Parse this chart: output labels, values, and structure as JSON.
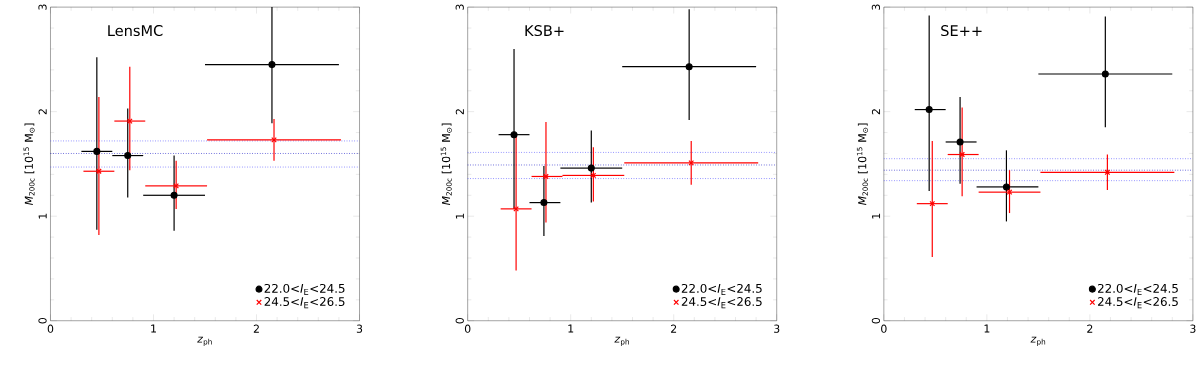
{
  "chart_data": [
    {
      "type": "scatter",
      "title": "LensMC",
      "xlabel": "*z*$_{ph}$",
      "ylabel": "*M*$_{200c}$ [10$^{15}$ M$_{⊙}$]",
      "xlim": [
        0,
        3
      ],
      "ylim": [
        0,
        3
      ],
      "xticks": [
        0,
        1,
        2,
        3
      ],
      "yticks": [
        0,
        1,
        2,
        3
      ],
      "legend": "bottom right",
      "ref_lines": [
        {
          "axis": "y",
          "value": 1.72,
          "color": "#4040ff",
          "line_style": "dotted"
        },
        {
          "axis": "y",
          "value": 1.6,
          "color": "#0000c0",
          "line_style": "dotted"
        },
        {
          "axis": "y",
          "value": 1.47,
          "color": "#4040ff",
          "line_style": "dotted"
        }
      ],
      "series": [
        {
          "name": "22.0<*I*$_{E}$<24.5",
          "color": "#000000",
          "marker": "circle",
          "x": [
            0.45,
            0.75,
            1.2,
            2.15
          ],
          "values": [
            1.62,
            1.58,
            1.2,
            2.45
          ],
          "errors": [
            [
              0.87,
              2.52
            ],
            [
              1.18,
              2.03
            ],
            [
              0.86,
              1.58
            ],
            [
              1.89,
              3.0
            ]
          ],
          "xerrors": [
            [
              0.3,
              0.6
            ],
            [
              0.6,
              0.9
            ],
            [
              0.9,
              1.5
            ],
            [
              1.5,
              2.8
            ]
          ]
        },
        {
          "name": "24.5<*I*$_{E}$<26.5",
          "color": "#ff0000",
          "marker": "cross",
          "x": [
            0.47,
            0.77,
            1.22,
            2.17
          ],
          "values": [
            1.43,
            1.91,
            1.29,
            1.73
          ],
          "errors": [
            [
              0.82,
              2.14
            ],
            [
              1.44,
              2.43
            ],
            [
              1.07,
              1.53
            ],
            [
              1.53,
              1.93
            ]
          ],
          "xerrors": [
            [
              0.32,
              0.62
            ],
            [
              0.62,
              0.92
            ],
            [
              0.92,
              1.52
            ],
            [
              1.52,
              2.82
            ]
          ]
        }
      ]
    },
    {
      "type": "scatter",
      "title": "KSB+",
      "xlabel": "*z*$_{ph}$",
      "ylabel": "*M*$_{200c}$ [10$^{15}$ M$_{⊙}$]",
      "xlim": [
        0,
        3
      ],
      "ylim": [
        0,
        3
      ],
      "xticks": [
        0,
        1,
        2,
        3
      ],
      "yticks": [
        0,
        1,
        2,
        3
      ],
      "legend": "bottom right",
      "ref_lines": [
        {
          "axis": "y",
          "value": 1.61,
          "color": "#4040ff",
          "line_style": "dotted"
        },
        {
          "axis": "y",
          "value": 1.49,
          "color": "#0000c0",
          "line_style": "dotted"
        },
        {
          "axis": "y",
          "value": 1.36,
          "color": "#4040ff",
          "line_style": "dotted"
        }
      ],
      "series": [
        {
          "name": "22.0<*I*$_{E}$<24.5",
          "color": "#000000",
          "marker": "circle",
          "x": [
            0.45,
            0.74,
            1.2,
            2.15
          ],
          "values": [
            1.78,
            1.13,
            1.46,
            2.43
          ],
          "errors": [
            [
              1.07,
              2.6
            ],
            [
              0.81,
              1.48
            ],
            [
              1.13,
              1.82
            ],
            [
              1.92,
              2.98
            ]
          ],
          "xerrors": [
            [
              0.3,
              0.6
            ],
            [
              0.6,
              0.9
            ],
            [
              0.9,
              1.5
            ],
            [
              1.5,
              2.8
            ]
          ]
        },
        {
          "name": "24.5<*I*$_{E}$<26.5",
          "color": "#ff0000",
          "marker": "cross",
          "x": [
            0.47,
            0.76,
            1.22,
            2.17
          ],
          "values": [
            1.07,
            1.38,
            1.39,
            1.51
          ],
          "errors": [
            [
              0.48,
              1.77
            ],
            [
              0.94,
              1.9
            ],
            [
              1.14,
              1.66
            ],
            [
              1.3,
              1.72
            ]
          ],
          "xerrors": [
            [
              0.32,
              0.62
            ],
            [
              0.62,
              0.92
            ],
            [
              0.92,
              1.52
            ],
            [
              1.52,
              2.82
            ]
          ]
        }
      ]
    },
    {
      "type": "scatter",
      "title": "SE++",
      "xlabel": "*z*$_{ph}$",
      "ylabel": "*M*$_{200c}$ [10$^{15}$ M$_{⊙}$]",
      "xlim": [
        0,
        3
      ],
      "ylim": [
        0,
        3
      ],
      "xticks": [
        0,
        1,
        2,
        3
      ],
      "yticks": [
        0,
        1,
        2,
        3
      ],
      "legend": "bottom right",
      "ref_lines": [
        {
          "axis": "y",
          "value": 1.55,
          "color": "#4040ff",
          "line_style": "dotted"
        },
        {
          "axis": "y",
          "value": 1.44,
          "color": "#0000c0",
          "line_style": "dotted"
        },
        {
          "axis": "y",
          "value": 1.34,
          "color": "#4040ff",
          "line_style": "dotted"
        }
      ],
      "series": [
        {
          "name": "22.0<*I*$_{E}$<24.5",
          "color": "#000000",
          "marker": "circle",
          "x": [
            0.44,
            0.74,
            1.19,
            2.15
          ],
          "values": [
            2.02,
            1.71,
            1.28,
            2.36
          ],
          "errors": [
            [
              1.24,
              2.92
            ],
            [
              1.31,
              2.14
            ],
            [
              0.95,
              1.63
            ],
            [
              1.85,
              2.91
            ]
          ],
          "xerrors": [
            [
              0.3,
              0.6
            ],
            [
              0.6,
              0.9
            ],
            [
              0.9,
              1.5
            ],
            [
              1.5,
              2.8
            ]
          ]
        },
        {
          "name": "24.5<*I*$_{E}$<26.5",
          "color": "#ff0000",
          "marker": "cross",
          "x": [
            0.47,
            0.76,
            1.22,
            2.17
          ],
          "values": [
            1.12,
            1.59,
            1.23,
            1.42
          ],
          "errors": [
            [
              0.61,
              1.72
            ],
            [
              1.19,
              2.04
            ],
            [
              1.03,
              1.44
            ],
            [
              1.25,
              1.59
            ]
          ],
          "xerrors": [
            [
              0.32,
              0.62
            ],
            [
              0.62,
              0.92
            ],
            [
              0.92,
              1.52
            ],
            [
              1.52,
              2.82
            ]
          ]
        }
      ]
    }
  ]
}
